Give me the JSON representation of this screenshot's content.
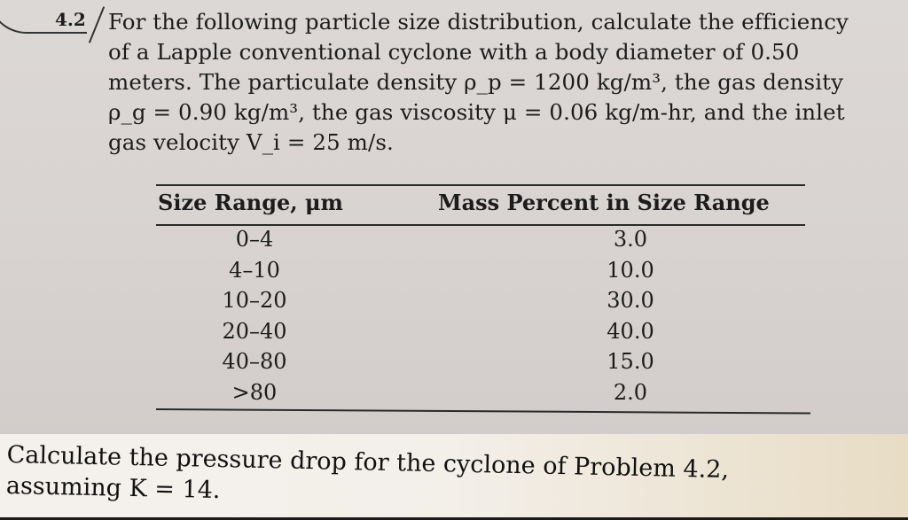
{
  "problem": {
    "number": "4.2",
    "lines": [
      "For the following particle size distribution, calculate the efficiency",
      "of a Lapple conventional cyclone with a body diameter of 0.50",
      "meters. The particulate density ρ_p = 1200 kg/m³, the gas density",
      "ρ_g = 0.90 kg/m³, the gas viscosity μ = 0.06 kg/m-hr, and the inlet",
      "gas velocity V_i = 25 m/s."
    ]
  },
  "table": {
    "headers": [
      "Size Range, μm",
      "Mass Percent in Size Range"
    ],
    "rows": [
      {
        "size": "0–4",
        "mass": "3.0"
      },
      {
        "size": "4–10",
        "mass": "10.0"
      },
      {
        "size": "10–20",
        "mass": "30.0"
      },
      {
        "size": "20–40",
        "mass": "40.0"
      },
      {
        "size": "40–80",
        "mass": "15.0"
      },
      {
        "size": ">80",
        "mass": "2.0"
      }
    ]
  },
  "question": {
    "lines": [
      "Calculate the pressure drop for the cyclone of Problem 4.2,",
      "assuming K = 14."
    ]
  }
}
